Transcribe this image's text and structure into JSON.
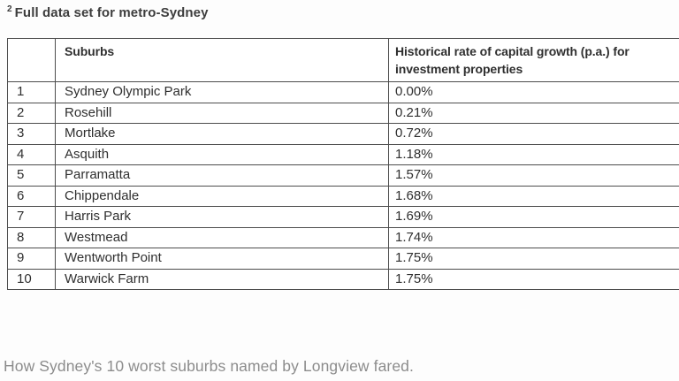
{
  "page": {
    "footnote_marker": "2",
    "title": "Full data set for metro-Sydney",
    "caption": "How Sydney's 10 worst suburbs named by Longview fared."
  },
  "table": {
    "headers": {
      "rank": "",
      "suburb": "Suburbs",
      "rate": "Historical rate of capital growth (p.a.) for investment properties"
    },
    "rows": [
      {
        "rank": "1",
        "suburb": "Sydney Olympic Park",
        "rate": "0.00%"
      },
      {
        "rank": "2",
        "suburb": "Rosehill",
        "rate": "0.21%"
      },
      {
        "rank": "3",
        "suburb": "Mortlake",
        "rate": "0.72%"
      },
      {
        "rank": "4",
        "suburb": "Asquith",
        "rate": "1.18%"
      },
      {
        "rank": "5",
        "suburb": "Parramatta",
        "rate": "1.57%"
      },
      {
        "rank": "6",
        "suburb": "Chippendale",
        "rate": "1.68%"
      },
      {
        "rank": "7",
        "suburb": "Harris Park",
        "rate": "1.69%"
      },
      {
        "rank": "8",
        "suburb": "Westmead",
        "rate": "1.74%"
      },
      {
        "rank": "9",
        "suburb": "Wentworth Point",
        "rate": "1.75%"
      },
      {
        "rank": "10",
        "suburb": "Warwick Farm",
        "rate": "1.75%"
      }
    ]
  },
  "colors": {
    "background": "#fdfdfd",
    "table_border": "#4d4d4d",
    "table_text": "#2f2f2f",
    "title_text": "#3d3d3d",
    "caption_text": "#8c8c8c"
  }
}
